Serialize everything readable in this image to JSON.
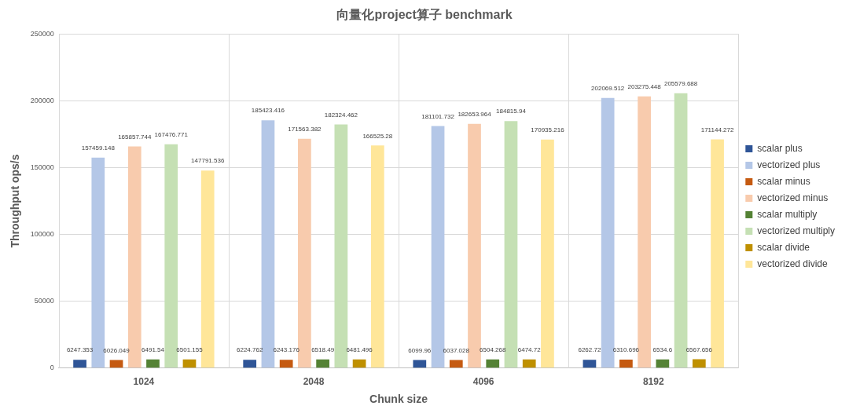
{
  "chart_data": {
    "type": "bar",
    "title": "向量化project算子 benchmark",
    "xlabel": "Chunk size",
    "ylabel": "Throughput ops/s",
    "categories": [
      "1024",
      "2048",
      "4096",
      "8192"
    ],
    "series": [
      {
        "name": "scalar plus",
        "color": "#2f5597",
        "values": [
          6247.353,
          6224.762,
          6099.96,
          6262.72
        ]
      },
      {
        "name": "vectorized plus",
        "color": "#b4c7e7",
        "values": [
          157459.148,
          185423.416,
          181101.732,
          202069.512
        ]
      },
      {
        "name": "scalar minus",
        "color": "#c55a11",
        "values": [
          6026.049,
          6243.176,
          6037.028,
          6310.696
        ]
      },
      {
        "name": "vectorized minus",
        "color": "#f8cbad",
        "values": [
          165857.744,
          171563.382,
          182653.964,
          203275.448
        ]
      },
      {
        "name": "scalar multiply",
        "color": "#548235",
        "values": [
          6491.54,
          6518.49,
          6504.268,
          6534.6
        ]
      },
      {
        "name": "vectorized multiply",
        "color": "#c5e0b4",
        "values": [
          167476.771,
          182324.462,
          184815.94,
          205579.688
        ]
      },
      {
        "name": "scalar divide",
        "color": "#bf9000",
        "values": [
          6501.155,
          6481.496,
          6474.72,
          6567.656
        ]
      },
      {
        "name": "vectorized divide",
        "color": "#ffe699",
        "values": [
          147791.536,
          166525.28,
          170935.216,
          171144.272
        ]
      }
    ],
    "ylim": [
      0,
      250000
    ],
    "yticks": [
      0,
      50000,
      100000,
      150000,
      200000,
      250000
    ],
    "grid": true,
    "legend": "right",
    "data_labels": true
  }
}
